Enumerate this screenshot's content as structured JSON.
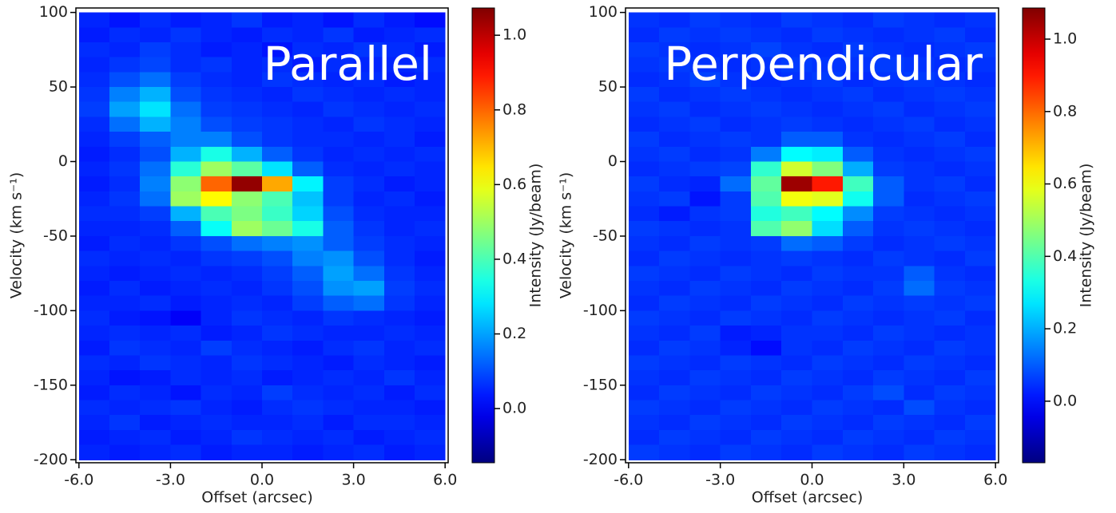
{
  "chart_data": [
    {
      "type": "heatmap",
      "colormap": "jet",
      "annotation": "Parallel",
      "xlabel": "Offset (arcsec)",
      "ylabel": "Velocity (km s⁻¹)",
      "colorbar_label": "Intensity (Jy/beam)",
      "xlim": [
        -6.1,
        6.1
      ],
      "ylim": [
        -202,
        103
      ],
      "zlim": [
        -0.145,
        1.073
      ],
      "xticks": [
        {
          "value": -6,
          "label": "-6.0"
        },
        {
          "value": -3,
          "label": "-3.0"
        },
        {
          "value": 0,
          "label": "0.0"
        },
        {
          "value": 3,
          "label": "3.0"
        },
        {
          "value": 6,
          "label": "6.0"
        }
      ],
      "yticks": [
        100,
        50,
        0,
        -50,
        -100,
        -150,
        -200
      ],
      "zticks": [
        {
          "value": 0,
          "label": "0.0"
        },
        {
          "value": 0.2,
          "label": "0.2"
        },
        {
          "value": 0.4,
          "label": "0.4"
        },
        {
          "value": 0.6,
          "label": "0.6"
        },
        {
          "value": 0.8,
          "label": "0.8"
        },
        {
          "value": 1,
          "label": "1.0"
        }
      ],
      "x": [
        -5.5,
        -4.5,
        -3.5,
        -2.5,
        -1.5,
        -0.5,
        0.5,
        1.5,
        2.5,
        3.5,
        4.5,
        5.5
      ],
      "y": [
        95,
        85,
        75,
        65,
        55,
        45,
        35,
        25,
        15,
        5,
        -5,
        -15,
        -25,
        -35,
        -45,
        -55,
        -65,
        -75,
        -85,
        -95,
        -105,
        -115,
        -125,
        -135,
        -145,
        -155,
        -165,
        -175,
        -185,
        -195
      ],
      "z": [
        [
          0.05,
          0.03,
          0.06,
          0.04,
          0.05,
          0.07,
          0.04,
          0.05,
          0.03,
          0.06,
          0.04,
          0.02
        ],
        [
          0.04,
          0.06,
          0.05,
          0.07,
          0.05,
          0.04,
          0.06,
          0.05,
          0.07,
          0.04,
          0.05,
          0.06
        ],
        [
          0.06,
          0.05,
          0.08,
          0.06,
          0.04,
          0.05,
          0.03,
          0.06,
          0.05,
          0.07,
          0.06,
          0.04
        ],
        [
          0.05,
          0.07,
          0.09,
          0.06,
          0.07,
          0.05,
          0.06,
          0.04,
          0.06,
          0.05,
          0.05,
          0.06
        ],
        [
          0.06,
          0.1,
          0.14,
          0.08,
          0.06,
          0.05,
          0.07,
          0.06,
          0.05,
          0.06,
          0.04,
          0.05
        ],
        [
          0.07,
          0.16,
          0.22,
          0.1,
          0.07,
          0.06,
          0.05,
          0.07,
          0.06,
          0.05,
          0.06,
          0.05
        ],
        [
          0.08,
          0.2,
          0.28,
          0.14,
          0.08,
          0.07,
          0.06,
          0.05,
          0.07,
          0.06,
          0.05,
          0.06
        ],
        [
          0.06,
          0.14,
          0.22,
          0.16,
          0.1,
          0.08,
          0.07,
          0.06,
          0.05,
          0.07,
          0.06,
          0.05
        ],
        [
          0.05,
          0.08,
          0.12,
          0.16,
          0.16,
          0.1,
          0.07,
          0.06,
          0.06,
          0.05,
          0.06,
          0.04
        ],
        [
          0.04,
          0.06,
          0.1,
          0.22,
          0.34,
          0.22,
          0.12,
          0.07,
          0.05,
          0.06,
          0.05,
          0.06
        ],
        [
          0.05,
          0.07,
          0.14,
          0.36,
          0.5,
          0.42,
          0.28,
          0.12,
          0.06,
          0.05,
          0.06,
          0.05
        ],
        [
          0.04,
          0.06,
          0.16,
          0.48,
          0.8,
          1.05,
          0.72,
          0.3,
          0.08,
          0.06,
          0.04,
          0.05
        ],
        [
          0.05,
          0.07,
          0.14,
          0.5,
          0.62,
          0.48,
          0.4,
          0.24,
          0.08,
          0.05,
          0.06,
          0.04
        ],
        [
          0.06,
          0.06,
          0.08,
          0.22,
          0.4,
          0.46,
          0.38,
          0.26,
          0.1,
          0.06,
          0.05,
          0.05
        ],
        [
          0.05,
          0.05,
          0.06,
          0.12,
          0.32,
          0.5,
          0.44,
          0.34,
          0.12,
          0.07,
          0.05,
          0.06
        ],
        [
          0.04,
          0.06,
          0.05,
          0.07,
          0.1,
          0.14,
          0.16,
          0.18,
          0.12,
          0.08,
          0.06,
          0.05
        ],
        [
          0.06,
          0.05,
          0.06,
          0.05,
          0.07,
          0.08,
          0.1,
          0.16,
          0.18,
          0.1,
          0.06,
          0.04
        ],
        [
          0.05,
          0.04,
          0.05,
          0.06,
          0.05,
          0.06,
          0.08,
          0.12,
          0.2,
          0.14,
          0.07,
          0.05
        ],
        [
          0.04,
          0.06,
          0.04,
          0.05,
          0.06,
          0.05,
          0.07,
          0.1,
          0.18,
          0.2,
          0.08,
          0.06
        ],
        [
          0.05,
          0.05,
          0.06,
          0.04,
          0.05,
          0.06,
          0.05,
          0.08,
          0.12,
          0.14,
          0.07,
          0.05
        ],
        [
          0.06,
          0.04,
          0.03,
          0.0,
          0.05,
          0.07,
          0.06,
          0.05,
          0.07,
          0.06,
          0.05,
          0.04
        ],
        [
          0.05,
          0.06,
          0.05,
          0.06,
          0.04,
          0.05,
          0.07,
          0.06,
          0.05,
          0.05,
          0.06,
          0.05
        ],
        [
          0.04,
          0.07,
          0.06,
          0.05,
          0.08,
          0.06,
          0.05,
          0.04,
          0.06,
          0.07,
          0.05,
          0.06
        ],
        [
          0.06,
          0.05,
          0.07,
          0.06,
          0.05,
          0.07,
          0.06,
          0.05,
          0.04,
          0.06,
          0.05,
          0.04
        ],
        [
          0.05,
          0.03,
          0.04,
          0.06,
          0.05,
          0.06,
          0.04,
          0.05,
          0.06,
          0.05,
          0.07,
          0.05
        ],
        [
          0.04,
          0.06,
          0.05,
          0.03,
          0.06,
          0.05,
          0.08,
          0.06,
          0.05,
          0.06,
          0.04,
          0.06
        ],
        [
          0.06,
          0.05,
          0.06,
          0.07,
          0.05,
          0.04,
          0.06,
          0.07,
          0.06,
          0.05,
          0.05,
          0.04
        ],
        [
          0.05,
          0.07,
          0.04,
          0.05,
          0.06,
          0.05,
          0.05,
          0.06,
          0.04,
          0.06,
          0.06,
          0.05
        ],
        [
          0.04,
          0.05,
          0.06,
          0.04,
          0.05,
          0.07,
          0.06,
          0.05,
          0.06,
          0.04,
          0.05,
          0.06
        ],
        [
          0.05,
          0.04,
          0.05,
          0.06,
          0.04,
          0.05,
          0.05,
          0.04,
          0.05,
          0.06,
          0.04,
          0.05
        ]
      ]
    },
    {
      "type": "heatmap",
      "colormap": "jet",
      "annotation": "Perpendicular",
      "xlabel": "Offset (arcsec)",
      "ylabel": "Velocity (km s⁻¹)",
      "colorbar_label": "Intensity (Jy/beam)",
      "xlim": [
        -6.1,
        6.1
      ],
      "ylim": [
        -202,
        103
      ],
      "zlim": [
        -0.17,
        1.086
      ],
      "xticks": [
        {
          "value": -6,
          "label": "-6.0"
        },
        {
          "value": -3,
          "label": "-3.0"
        },
        {
          "value": 0,
          "label": "0.0"
        },
        {
          "value": 3,
          "label": "3.0"
        },
        {
          "value": 6,
          "label": "6.0"
        }
      ],
      "yticks": [
        100,
        50,
        0,
        -50,
        -100,
        -150,
        -200
      ],
      "zticks": [
        {
          "value": 0,
          "label": "0.0"
        },
        {
          "value": 0.2,
          "label": "0.2"
        },
        {
          "value": 0.4,
          "label": "0.4"
        },
        {
          "value": 0.6,
          "label": "0.6"
        },
        {
          "value": 0.8,
          "label": "0.8"
        },
        {
          "value": 1,
          "label": "1.0"
        }
      ],
      "x": [
        -5.5,
        -4.5,
        -3.5,
        -2.5,
        -1.5,
        -0.5,
        0.5,
        1.5,
        2.5,
        3.5,
        4.5,
        5.5
      ],
      "y": [
        95,
        85,
        75,
        65,
        55,
        45,
        35,
        25,
        15,
        5,
        -5,
        -15,
        -25,
        -35,
        -45,
        -55,
        -65,
        -75,
        -85,
        -95,
        -105,
        -115,
        -125,
        -135,
        -145,
        -155,
        -165,
        -175,
        -185,
        -195
      ],
      "z": [
        [
          0.05,
          0.04,
          0.06,
          0.05,
          0.04,
          0.06,
          0.05,
          0.04,
          0.06,
          0.05,
          0.04,
          0.05
        ],
        [
          0.04,
          0.06,
          0.05,
          0.06,
          0.05,
          0.04,
          0.06,
          0.05,
          0.04,
          0.05,
          0.06,
          0.04
        ],
        [
          0.06,
          0.05,
          0.04,
          0.05,
          0.07,
          0.05,
          0.04,
          0.06,
          0.05,
          0.04,
          0.05,
          0.06
        ],
        [
          0.05,
          0.06,
          0.05,
          0.04,
          0.05,
          0.06,
          0.05,
          0.05,
          0.06,
          0.05,
          0.04,
          0.05
        ],
        [
          0.04,
          0.05,
          0.07,
          0.05,
          0.04,
          0.05,
          0.06,
          0.04,
          0.05,
          0.06,
          0.05,
          0.04
        ],
        [
          0.06,
          0.04,
          0.05,
          0.06,
          0.05,
          0.04,
          0.05,
          0.06,
          0.04,
          0.05,
          0.06,
          0.05
        ],
        [
          0.05,
          0.06,
          0.04,
          0.05,
          0.06,
          0.05,
          0.04,
          0.05,
          0.06,
          0.04,
          0.05,
          0.06
        ],
        [
          0.04,
          0.05,
          0.06,
          0.04,
          0.05,
          0.06,
          0.05,
          0.04,
          0.05,
          0.06,
          0.04,
          0.05
        ],
        [
          0.06,
          0.04,
          0.05,
          0.06,
          0.05,
          0.1,
          0.1,
          0.05,
          0.04,
          0.05,
          0.06,
          0.04
        ],
        [
          0.05,
          0.06,
          0.04,
          0.05,
          0.14,
          0.3,
          0.28,
          0.1,
          0.05,
          0.04,
          0.05,
          0.06
        ],
        [
          0.04,
          0.05,
          0.06,
          0.07,
          0.36,
          0.56,
          0.46,
          0.2,
          0.06,
          0.05,
          0.04,
          0.05
        ],
        [
          0.06,
          0.04,
          0.03,
          0.12,
          0.42,
          1.05,
          0.9,
          0.38,
          0.1,
          0.05,
          0.06,
          0.04
        ],
        [
          0.05,
          0.06,
          0.01,
          0.06,
          0.4,
          0.6,
          0.58,
          0.32,
          0.1,
          0.04,
          0.05,
          0.06
        ],
        [
          0.04,
          0.02,
          0.05,
          0.06,
          0.34,
          0.38,
          0.3,
          0.16,
          0.06,
          0.05,
          0.04,
          0.05
        ],
        [
          0.06,
          0.05,
          0.04,
          0.05,
          0.4,
          0.48,
          0.26,
          0.1,
          0.05,
          0.06,
          0.05,
          0.04
        ],
        [
          0.05,
          0.04,
          0.06,
          0.05,
          0.06,
          0.12,
          0.1,
          0.06,
          0.04,
          0.05,
          0.06,
          0.05
        ],
        [
          0.04,
          0.06,
          0.05,
          0.04,
          0.05,
          0.06,
          0.05,
          0.04,
          0.06,
          0.05,
          0.04,
          0.06
        ],
        [
          0.06,
          0.05,
          0.04,
          0.06,
          0.05,
          0.04,
          0.06,
          0.05,
          0.05,
          0.1,
          0.05,
          0.04
        ],
        [
          0.05,
          0.04,
          0.06,
          0.05,
          0.04,
          0.06,
          0.05,
          0.04,
          0.06,
          0.12,
          0.06,
          0.05
        ],
        [
          0.04,
          0.06,
          0.05,
          0.04,
          0.06,
          0.05,
          0.04,
          0.06,
          0.05,
          0.06,
          0.05,
          0.06
        ],
        [
          0.06,
          0.05,
          0.04,
          0.06,
          0.05,
          0.04,
          0.06,
          0.05,
          0.04,
          0.05,
          0.06,
          0.04
        ],
        [
          0.05,
          0.04,
          0.06,
          0.02,
          0.03,
          0.05,
          0.05,
          0.04,
          0.06,
          0.05,
          0.04,
          0.05
        ],
        [
          0.04,
          0.06,
          0.05,
          0.03,
          0.0,
          0.05,
          0.04,
          0.06,
          0.05,
          0.04,
          0.06,
          0.05
        ],
        [
          0.06,
          0.05,
          0.04,
          0.06,
          0.05,
          0.04,
          0.06,
          0.05,
          0.04,
          0.06,
          0.05,
          0.04
        ],
        [
          0.05,
          0.04,
          0.06,
          0.05,
          0.04,
          0.06,
          0.05,
          0.04,
          0.06,
          0.05,
          0.04,
          0.06
        ],
        [
          0.04,
          0.06,
          0.05,
          0.04,
          0.06,
          0.05,
          0.04,
          0.06,
          0.08,
          0.04,
          0.06,
          0.05
        ],
        [
          0.06,
          0.05,
          0.04,
          0.06,
          0.05,
          0.04,
          0.06,
          0.05,
          0.04,
          0.08,
          0.05,
          0.04
        ],
        [
          0.05,
          0.04,
          0.06,
          0.05,
          0.04,
          0.06,
          0.05,
          0.04,
          0.06,
          0.05,
          0.04,
          0.06
        ],
        [
          0.04,
          0.06,
          0.05,
          0.04,
          0.06,
          0.05,
          0.04,
          0.06,
          0.05,
          0.04,
          0.06,
          0.05
        ],
        [
          0.06,
          0.05,
          0.04,
          0.06,
          0.05,
          0.04,
          0.06,
          0.05,
          0.04,
          0.06,
          0.05,
          0.04
        ]
      ]
    }
  ]
}
